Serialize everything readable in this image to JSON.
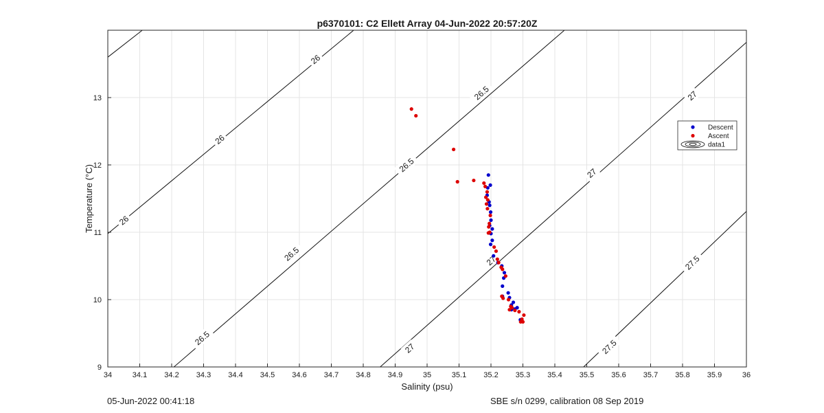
{
  "chart_data": {
    "type": "scatter",
    "title": "p6370101: C2 Ellett Array 04-Jun-2022 20:57:20Z",
    "xlabel": "Salinity (psu)",
    "ylabel": "Temperature (°C)",
    "xlim": [
      34,
      36
    ],
    "ylim": [
      9,
      14
    ],
    "grid": true,
    "legend_position": "right",
    "x_ticks": [
      "34",
      "34.1",
      "34.2",
      "34.3",
      "34.4",
      "34.5",
      "34.6",
      "34.7",
      "34.8",
      "34.9",
      "35",
      "35.1",
      "35.2",
      "35.3",
      "35.4",
      "35.5",
      "35.6",
      "35.7",
      "35.8",
      "35.9",
      "36"
    ],
    "y_ticks": [
      "9",
      "10",
      "11",
      "12",
      "13"
    ],
    "legend": [
      {
        "name": "Descent",
        "color": "#0000cc",
        "marker": "dot"
      },
      {
        "name": "Ascent",
        "color": "#dd0000",
        "marker": "dot"
      },
      {
        "name": "data1",
        "color": "#000000",
        "marker": "contour"
      }
    ],
    "series": [
      {
        "name": "Descent",
        "color": "#0000cc",
        "points": [
          [
            35.192,
            11.85
          ],
          [
            35.198,
            11.7
          ],
          [
            35.19,
            11.66
          ],
          [
            35.188,
            11.55
          ],
          [
            35.194,
            11.45
          ],
          [
            35.196,
            11.4
          ],
          [
            35.199,
            11.3
          ],
          [
            35.2,
            11.18
          ],
          [
            35.196,
            11.1
          ],
          [
            35.204,
            11.05
          ],
          [
            35.2,
            10.98
          ],
          [
            35.204,
            10.88
          ],
          [
            35.199,
            10.82
          ],
          [
            35.208,
            10.65
          ],
          [
            35.222,
            10.55
          ],
          [
            35.234,
            10.5
          ],
          [
            35.242,
            10.4
          ],
          [
            35.24,
            10.32
          ],
          [
            35.236,
            10.2
          ],
          [
            35.254,
            10.1
          ],
          [
            35.236,
            10.05
          ],
          [
            35.258,
            10.03
          ],
          [
            35.27,
            9.96
          ],
          [
            35.264,
            9.92
          ],
          [
            35.282,
            9.88
          ],
          [
            35.275,
            9.86
          ],
          [
            35.264,
            9.85
          ],
          [
            35.292,
            9.7
          ],
          [
            35.296,
            9.69
          ]
        ]
      },
      {
        "name": "Ascent",
        "color": "#dd0000",
        "points": [
          [
            34.951,
            12.83
          ],
          [
            34.965,
            12.73
          ],
          [
            35.083,
            12.23
          ],
          [
            35.095,
            11.75
          ],
          [
            35.146,
            11.77
          ],
          [
            35.178,
            11.73
          ],
          [
            35.182,
            11.68
          ],
          [
            35.188,
            11.6
          ],
          [
            35.184,
            11.52
          ],
          [
            35.19,
            11.48
          ],
          [
            35.186,
            11.42
          ],
          [
            35.189,
            11.35
          ],
          [
            35.198,
            11.25
          ],
          [
            35.195,
            11.13
          ],
          [
            35.193,
            11.08
          ],
          [
            35.196,
            11.0
          ],
          [
            35.192,
            10.99
          ],
          [
            35.21,
            10.78
          ],
          [
            35.216,
            10.72
          ],
          [
            35.22,
            10.6
          ],
          [
            35.224,
            10.55
          ],
          [
            35.232,
            10.48
          ],
          [
            35.236,
            10.45
          ],
          [
            35.246,
            10.35
          ],
          [
            35.234,
            10.05
          ],
          [
            35.238,
            10.02
          ],
          [
            35.255,
            10.0
          ],
          [
            35.262,
            9.9
          ],
          [
            35.266,
            9.88
          ],
          [
            35.258,
            9.85
          ],
          [
            35.275,
            9.84
          ],
          [
            35.288,
            9.82
          ],
          [
            35.303,
            9.77
          ],
          [
            35.297,
            9.71
          ],
          [
            35.293,
            9.67
          ],
          [
            35.3,
            9.67
          ]
        ]
      }
    ],
    "isopycnals": [
      {
        "label": "26",
        "points": [
          [
            34.0,
            13.6
          ],
          [
            34.108,
            14.0
          ]
        ],
        "labels_at": []
      },
      {
        "label": "26",
        "points": [
          [
            34.0,
            10.98
          ],
          [
            34.77,
            14.0
          ]
        ],
        "labels_at": [
          [
            34.05,
            11.18
          ],
          [
            34.35,
            12.38
          ],
          [
            34.65,
            13.57
          ]
        ]
      },
      {
        "label": "26.5",
        "points": [
          [
            34.207,
            9.0
          ],
          [
            35.43,
            14.0
          ]
        ],
        "labels_at": [
          [
            34.295,
            9.43
          ],
          [
            34.575,
            10.68
          ],
          [
            34.935,
            12.0
          ],
          [
            35.17,
            13.07
          ]
        ]
      },
      {
        "label": "27",
        "points": [
          [
            34.853,
            9.0
          ],
          [
            36.0,
            13.82
          ]
        ],
        "labels_at": [
          [
            34.945,
            9.28
          ],
          [
            35.2,
            10.58
          ],
          [
            35.515,
            11.88
          ],
          [
            35.83,
            13.03
          ]
        ]
      },
      {
        "label": "27.5",
        "points": [
          [
            35.49,
            9.0
          ],
          [
            36.0,
            11.31
          ]
        ],
        "labels_at": [
          [
            35.57,
            9.3
          ],
          [
            35.83,
            10.55
          ]
        ]
      }
    ]
  },
  "footer": {
    "left": "05-Jun-2022 00:41:18",
    "right": "SBE s/n 0299, calibration 08 Sep 2019"
  }
}
